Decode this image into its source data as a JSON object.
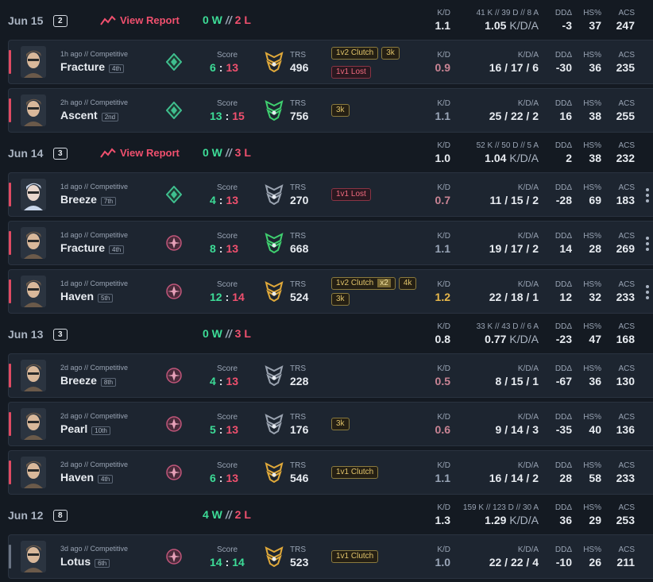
{
  "labels": {
    "view_report": "View Report",
    "score": "Score",
    "trs": "TRS",
    "kd": "K/D",
    "kda": "K/D/A",
    "dd": "DDΔ",
    "hs": "HS%",
    "acs": "ACS",
    "record_sep": "//",
    "score_sep": ":"
  },
  "days": [
    {
      "date": "Jun 15",
      "count": 2,
      "view_report": true,
      "wins": "0 W",
      "losses": "2 L",
      "kd": "1.1",
      "totals": "41 K // 39 D // 8 A",
      "kda": 1.05,
      "dd": -3,
      "hs": 37,
      "acs": 247,
      "matches": [
        {
          "time": "1h ago // Competitive",
          "map": "Fracture",
          "place": "4th",
          "rank_color": "#3fbf8f",
          "avatar_color": "#6b5a4a",
          "score": [
            6,
            13
          ],
          "trs": 496,
          "trs_color": "#e0a93a",
          "badges": [
            {
              "text": "1v2 Clutch"
            },
            {
              "text": "3k"
            },
            {
              "text": "1v1 Lost",
              "lost": true
            }
          ],
          "kd": "0.9",
          "kda": "16 / 17 / 6",
          "dd": -30,
          "hs": 36,
          "acs": 235,
          "menu": false
        },
        {
          "time": "2h ago // Competitive",
          "map": "Ascent",
          "place": "2nd",
          "rank_color": "#3fbf8f",
          "avatar_color": "#6b5a4a",
          "score": [
            13,
            15
          ],
          "trs": 756,
          "trs_color": "#3fcf6f",
          "badges": [
            {
              "text": "3k"
            }
          ],
          "kd": "1.1",
          "kda": "25 / 22 / 2",
          "dd": 16,
          "hs": 38,
          "acs": 255,
          "menu": false
        }
      ]
    },
    {
      "date": "Jun 14",
      "count": 3,
      "view_report": true,
      "wins": "0 W",
      "losses": "3 L",
      "kd": "1.0",
      "totals": "52 K // 50 D // 5 A",
      "kda": 1.04,
      "dd": 2,
      "hs": 38,
      "acs": 232,
      "matches": [
        {
          "time": "1d ago // Competitive",
          "map": "Breeze",
          "place": "7th",
          "rank_color": "#3fbf8f",
          "avatar_color": "#c9d6ea",
          "score": [
            4,
            13
          ],
          "trs": 270,
          "trs_color": "#9aa3b0",
          "badges": [
            {
              "text": "1v1 Lost",
              "lost": true
            }
          ],
          "kd": "0.7",
          "kda": "11 / 15 / 2",
          "dd": -28,
          "hs": 69,
          "acs": 183,
          "menu": true
        },
        {
          "time": "1d ago // Competitive",
          "map": "Fracture",
          "place": "4th",
          "rank_color": "#c0567a",
          "avatar_color": "#6b5a4a",
          "score": [
            8,
            13
          ],
          "trs": 668,
          "trs_color": "#3fcf6f",
          "badges": [],
          "kd": "1.1",
          "kda": "19 / 17 / 2",
          "dd": 14,
          "hs": 28,
          "acs": 269,
          "menu": true
        },
        {
          "time": "1d ago // Competitive",
          "map": "Haven",
          "place": "5th",
          "rank_color": "#c0567a",
          "avatar_color": "#6b5a4a",
          "score": [
            12,
            14
          ],
          "trs": 524,
          "trs_color": "#e0a93a",
          "badges": [
            {
              "text": "1v2 Clutch",
              "mult": "x2"
            },
            {
              "text": "4k"
            },
            {
              "text": "3k"
            }
          ],
          "kd": "1.2",
          "kda": "22 / 18 / 1",
          "dd": 12,
          "hs": 32,
          "acs": 233,
          "menu": true
        }
      ]
    },
    {
      "date": "Jun 13",
      "count": 3,
      "view_report": false,
      "wins": "0 W",
      "losses": "3 L",
      "kd": "0.8",
      "totals": "33 K // 43 D // 6 A",
      "kda": 0.77,
      "dd": -23,
      "hs": 47,
      "acs": 168,
      "matches": [
        {
          "time": "2d ago // Competitive",
          "map": "Breeze",
          "place": "8th",
          "rank_color": "#c0567a",
          "avatar_color": "#6b5a4a",
          "score": [
            4,
            13
          ],
          "trs": 228,
          "trs_color": "#9aa3b0",
          "badges": [],
          "kd": "0.5",
          "kda": "8 / 15 / 1",
          "dd": -67,
          "hs": 36,
          "acs": 130,
          "menu": false
        },
        {
          "time": "2d ago // Competitive",
          "map": "Pearl",
          "place": "10th",
          "rank_color": "#c0567a",
          "avatar_color": "#6b5a4a",
          "score": [
            5,
            13
          ],
          "trs": 176,
          "trs_color": "#9aa3b0",
          "badges": [
            {
              "text": "3k"
            }
          ],
          "kd": "0.6",
          "kda": "9 / 14 / 3",
          "dd": -35,
          "hs": 40,
          "acs": 136,
          "menu": false
        },
        {
          "time": "2d ago // Competitive",
          "map": "Haven",
          "place": "4th",
          "rank_color": "#c0567a",
          "avatar_color": "#6b5a4a",
          "score": [
            6,
            13
          ],
          "trs": 546,
          "trs_color": "#e0a93a",
          "badges": [
            {
              "text": "1v1 Clutch"
            }
          ],
          "kd": "1.1",
          "kda": "16 / 14 / 2",
          "dd": 28,
          "hs": 58,
          "acs": 233,
          "menu": false
        }
      ]
    },
    {
      "date": "Jun 12",
      "count": 8,
      "view_report": false,
      "wins": "4 W",
      "losses": "2 L",
      "kd": "1.3",
      "totals": "159 K // 123 D // 30 A",
      "kda": 1.29,
      "dd": 36,
      "hs": 29,
      "acs": 253,
      "matches": [
        {
          "time": "3d ago // Competitive",
          "map": "Lotus",
          "place": "6th",
          "rank_color": "#c0567a",
          "avatar_color": "#6b5a4a",
          "score": [
            14,
            14
          ],
          "trs": 523,
          "trs_color": "#e0a93a",
          "badges": [
            {
              "text": "1v1 Clutch"
            }
          ],
          "kd": "1.0",
          "kda": "22 / 22 / 4",
          "dd": -10,
          "hs": 26,
          "acs": 211,
          "menu": false
        }
      ]
    }
  ]
}
